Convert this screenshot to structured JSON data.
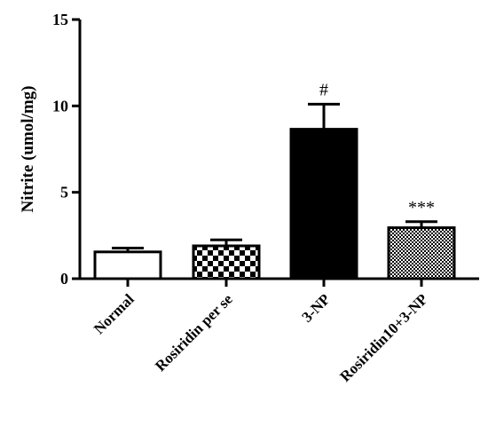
{
  "chart_data": {
    "type": "bar",
    "title": "",
    "xlabel": "",
    "ylabel": "Nitrite (umol/mg)",
    "ylim": [
      0,
      15
    ],
    "yticks": [
      0,
      5,
      10,
      15
    ],
    "categories": [
      "Normal",
      "Rosiridin per se",
      "3-NP",
      "Rosiridin10+3-NP"
    ],
    "values": [
      1.55,
      1.9,
      8.65,
      2.95
    ],
    "errors": [
      0.22,
      0.35,
      1.45,
      0.35
    ],
    "annotations": [
      "",
      "",
      "#",
      "***"
    ],
    "fills": [
      "white",
      "checker",
      "black",
      "fine-checker"
    ],
    "colors": {
      "bar_edge": "#000000",
      "solid": "#000000",
      "empty": "#ffffff"
    }
  }
}
